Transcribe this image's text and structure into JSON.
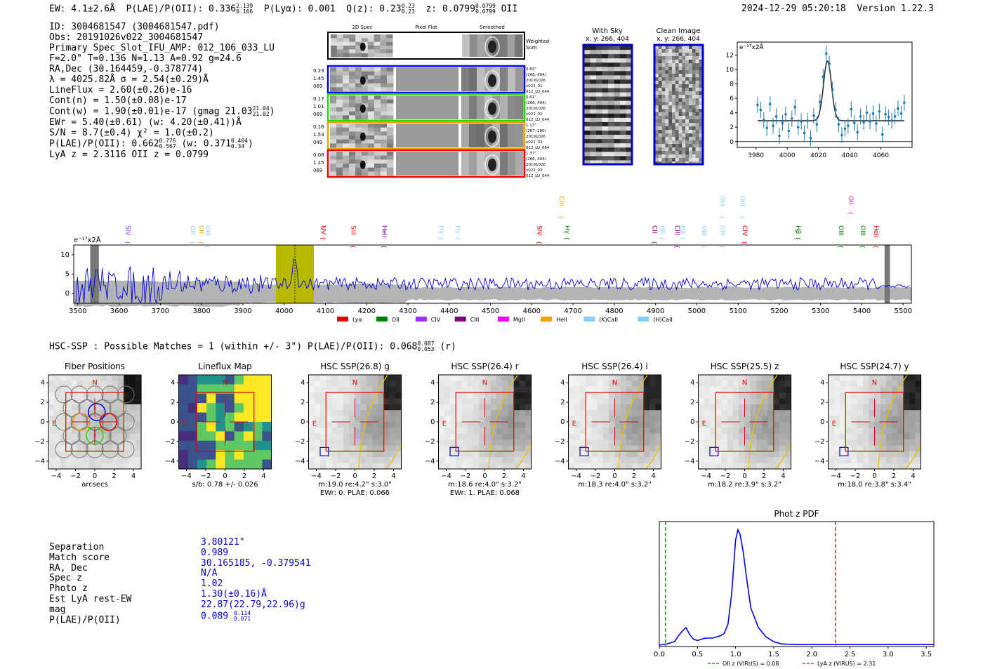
{
  "header": {
    "ew": "EW: 4.1±2.6Å",
    "plae": "P(LAE)/P(OII): 0.336",
    "plae_hi": "2.139",
    "plae_lo": "0.166",
    "plya": "P(Lyα): 0.001",
    "q": "Q(z): 0.23",
    "q_hi": "0.23",
    "q_lo": "0.23",
    "z": "z: 0.0799",
    "z_hi": "0.0799",
    "z_lo": "0.0799",
    "z_line": "OII",
    "timestamp": "2024-12-29 05:20:18",
    "version": "Version 1.22.3"
  },
  "info": {
    "lines": [
      "ID: 3004681547 (3004681547.pdf)",
      "Obs: 20191026v022_3004681547",
      "Primary Spec_Slot_IFU_AMP: 012_106_033_LU",
      "F=2.0\"  T=0.136  N=1.13  A=0.92  g=24.6",
      "RA,Dec (30.164459,-0.378774)",
      "λ = 4025.82Å  σ = 2.54(±0.29)Å",
      "LineFlux = 2.60(±0.26)e-16",
      "Cont(n) = 1.50(±0.08)e-17",
      "Cont(w) = 1.90(±0.01)e-17 (gmag 21.03",
      "EWr = 5.40(±0.61) (w: 4.20(±0.41))Å",
      "S/N = 8.7(±0.4)  χ² = 1.0(±0.2)",
      "P(LAE)/P(OII): 0.662",
      "LyA z = 2.3116  OII z = 0.0799"
    ],
    "gmag_hi": "21.04",
    "gmag_lo": "21.02",
    "plae_hi": "0.776",
    "plae_lo": "0.567",
    "plae_w": "(w: 0.371",
    "plae_w_hi": "0.404",
    "plae_w_lo": "0.34",
    "plae_w_close": ")"
  },
  "cutouts": {
    "col_titles": [
      "2D Spec",
      "Pixel Flat",
      "Smoothed"
    ],
    "weighted_label": "Weighted Sum",
    "rows": [
      {
        "left": [
          "0.23",
          "1.45",
          "069"
        ],
        "right": [
          "0.83\"",
          "(266, 404)",
          "20191026",
          "v022_01",
          "012_LU_044"
        ],
        "color": "#0000ff"
      },
      {
        "left": [
          "0.17",
          "1.01",
          "069"
        ],
        "right": [
          "0.61\"",
          "(266, 404)",
          "20191026",
          "v022_02",
          "012_LU_044"
        ],
        "color": "#22dd00"
      },
      {
        "left": [
          "0.16",
          "1.53",
          "049"
        ],
        "right": [
          "1.17\"",
          "(267, 180)",
          "20191026",
          "v022_03",
          "012_LU_064"
        ],
        "color": "#f5a000"
      },
      {
        "left": [
          "0.08",
          "1.25",
          "069"
        ],
        "right": [
          "1.37\"",
          "(266, 404)",
          "20191026",
          "v022_03",
          "012_LU_044"
        ],
        "color": "#ee0000"
      }
    ],
    "sky_title": "With Sky",
    "sky_coords": "x, y: 266, 404",
    "clean_title": "Clean Image",
    "clean_coords": "x, y: 266, 404"
  },
  "zoom_chart": {
    "type": "line",
    "ylabel": "e⁻¹⁷x2Å",
    "x_ticks": [
      "3980",
      "4000",
      "4020",
      "4040",
      "4060"
    ],
    "y_ticks": [
      "0",
      "2",
      "4",
      "6",
      "8",
      "10",
      "12"
    ],
    "xlim": [
      3968,
      4080
    ],
    "ylim": [
      -0.8,
      13.8
    ],
    "data_x": [
      3981,
      3983,
      3985,
      3987,
      3989,
      3991,
      3993,
      3995,
      3997,
      3999,
      4001,
      4003,
      4005,
      4007,
      4009,
      4011,
      4013,
      4015,
      4017,
      4019,
      4021,
      4023,
      4025,
      4027,
      4029,
      4031,
      4033,
      4035,
      4037,
      4039,
      4041,
      4043,
      4045,
      4047,
      4049,
      4051,
      4053,
      4055,
      4057,
      4059,
      4061,
      4063,
      4065,
      4067,
      4069,
      4071,
      4073,
      4075
    ],
    "data_y": [
      5.1,
      4.4,
      3.0,
      1.9,
      5.2,
      2.2,
      3.5,
      0.8,
      2.6,
      3.8,
      1.5,
      3.2,
      4.8,
      2.0,
      2.8,
      1.2,
      2.9,
      0.5,
      3.6,
      2.4,
      5.5,
      9.0,
      12.2,
      10.8,
      7.2,
      4.4,
      2.4,
      0.9,
      1.8,
      2.2,
      4.5,
      2.6,
      1.3,
      3.5,
      2.7,
      4.0,
      2.8,
      3.9,
      2.5,
      4.2,
      1.0,
      3.8,
      3.4,
      2.9,
      3.5,
      4.6,
      3.9,
      5.4
    ],
    "fit": {
      "continuum": 2.9,
      "amplitude": 8.3,
      "center": 4025.8,
      "sigma": 2.54
    }
  },
  "spectrum": {
    "ylabel": "e⁻¹⁷x2Å",
    "x_ticks": [
      "3500",
      "3600",
      "3700",
      "3800",
      "3900",
      "4000",
      "4100",
      "4200",
      "4300",
      "4400",
      "4500",
      "4600",
      "4700",
      "4800",
      "4900",
      "5000",
      "5100",
      "5200",
      "5300",
      "5400",
      "5500"
    ],
    "y_ticks": [
      "0",
      "5",
      "10"
    ],
    "xlim": [
      3490,
      5520
    ],
    "ylim": [
      -2.5,
      12.5
    ],
    "highlight_range": [
      3980,
      4072
    ],
    "line_marker": 4026,
    "masked_regions": [
      [
        3530,
        3551
      ],
      [
        5455,
        5468
      ]
    ],
    "lines": [
      {
        "label": "SIV",
        "x": 3622,
        "color": "#9b30ff",
        "row": "low"
      },
      {
        "label": "OII",
        "x": 3778,
        "color": "#87cefa",
        "row": "low"
      },
      {
        "label": "CII",
        "x": 3800,
        "color": "#f5a000",
        "row": "low"
      },
      {
        "label": "OIII",
        "x": 3815,
        "color": "#87cefa",
        "row": "low"
      },
      {
        "label": "NV",
        "x": 4095,
        "color": "#ee0000",
        "row": "low"
      },
      {
        "label": "SiII",
        "x": 4168,
        "color": "#ee0000",
        "row": "low"
      },
      {
        "label": "HeII",
        "x": 4243,
        "color": "#800080",
        "row": "low"
      },
      {
        "label": "Hγ",
        "x": 4382,
        "color": "#87cefa",
        "row": "low"
      },
      {
        "label": "Hγ",
        "x": 4422,
        "color": "#87cefa",
        "row": "low"
      },
      {
        "label": "SIV",
        "x": 4619,
        "color": "#ee0000",
        "row": "low"
      },
      {
        "label": "CIII",
        "x": 4673,
        "color": "#f5a000",
        "row": "high"
      },
      {
        "label": "Hγ",
        "x": 4686,
        "color": "#008000",
        "row": "low"
      },
      {
        "label": "CII",
        "x": 4898,
        "color": "#800080",
        "row": "low"
      },
      {
        "label": "Hδ",
        "x": 4917,
        "color": "#87cefa",
        "row": "low"
      },
      {
        "label": "CIII",
        "x": 4953,
        "color": "#800080",
        "row": "low"
      },
      {
        "label": "Hβ",
        "x": 4966,
        "color": "#87cefa",
        "row": "low"
      },
      {
        "label": "OIII",
        "x": 5018,
        "color": "#87cefa",
        "row": "low"
      },
      {
        "label": "OIII",
        "x": 5063,
        "color": "#87cefa",
        "row": "low"
      },
      {
        "label": "OIII",
        "x": 5062,
        "color": "#87cefa",
        "row": "high"
      },
      {
        "label": "OIII",
        "x": 5111,
        "color": "#87cefa",
        "row": "high"
      },
      {
        "label": "CIV",
        "x": 5117,
        "color": "#ee0000",
        "row": "low"
      },
      {
        "label": "Hβ",
        "x": 5246,
        "color": "#008000",
        "row": "low"
      },
      {
        "label": "OII",
        "x": 5374,
        "color": "#ff00ff",
        "row": "high"
      },
      {
        "label": "OIII",
        "x": 5350,
        "color": "#008000",
        "row": "low"
      },
      {
        "label": "OIII",
        "x": 5403,
        "color": "#008000",
        "row": "low"
      },
      {
        "label": "HeII",
        "x": 5435,
        "color": "#ee0000",
        "row": "low"
      }
    ],
    "legend": [
      {
        "label": "Lyα",
        "color": "#ee0000"
      },
      {
        "label": "OII",
        "color": "#008000"
      },
      {
        "label": "CIV",
        "color": "#9b30ff"
      },
      {
        "label": "CIII",
        "color": "#800080"
      },
      {
        "label": "MgII",
        "color": "#ff00ff"
      },
      {
        "label": "HeII",
        "color": "#f5a000"
      },
      {
        "label": "(K)CaII",
        "color": "#87cefa"
      },
      {
        "label": "(H)CaII",
        "color": "#87cefa"
      }
    ]
  },
  "hsc": {
    "title": "HSC-SSP : Possible Matches = 1 (within +/- 3\")  P(LAE)/P(OII): 0.068",
    "plae_hi": "0.087",
    "plae_lo": "0.053",
    "band": "(r)",
    "panels": [
      {
        "title": "Fiber Positions",
        "xlabel": "arcsecs",
        "sub": "",
        "kind": "fiber"
      },
      {
        "title": "Lineflux Map",
        "xlabel": "s/b: 0.78 +/- 0.026",
        "sub": "",
        "kind": "lineflux"
      },
      {
        "title": "HSC SSP(26.8) g",
        "xlabel": "m:19.0  re:4.2\"  s:3.0\"",
        "sub": "EWr: 0. PLAE: 0.066",
        "kind": "hsc",
        "stamp": 0.7
      },
      {
        "title": "HSC SSP(26.4) r",
        "xlabel": "m:18.6  re:4.0\"  s:3.2\"",
        "sub": "EWr: 1. PLAE: 0.068",
        "kind": "hsc",
        "stamp": 0.8
      },
      {
        "title": "HSC SSP(26.4) i",
        "xlabel": "m:18.3  re:4.0\"  s:3.2\"",
        "sub": "",
        "kind": "hsc",
        "stamp": 0.85
      },
      {
        "title": "HSC SSP(25.5) z",
        "xlabel": "m:18.2  re:3.9\"  s:3.2\"",
        "sub": "",
        "kind": "hsc",
        "stamp": 0.9
      },
      {
        "title": "HSC SSP(24.7) y",
        "xlabel": "m:18.0  re:3.8\"  s:3.4\"",
        "sub": "",
        "kind": "hsc",
        "stamp": 1.0
      }
    ],
    "ticks": [
      "−4",
      "−2",
      "0",
      "2",
      "4"
    ],
    "north": "N",
    "east": "E"
  },
  "match_table": {
    "labels": [
      "Separation",
      "Match score",
      "RA, Dec",
      "Spec z",
      "Photo z",
      "Est LyA rest-EW",
      "mag",
      "P(LAE)/P(OII)"
    ],
    "values": [
      "3.80121\"",
      "0.989",
      "30.165185, -0.379541",
      "N/A",
      "1.02",
      "1.30(±0.16)Å",
      "22.87(22.79,22.96)g",
      "0.089"
    ],
    "plae_hi": "0.114",
    "plae_lo": "0.071"
  },
  "chart_data": {
    "type": "line",
    "title": "Phot z PDF",
    "xlabel": "",
    "ylabel": "",
    "x_ticks": [
      "0.0",
      "0.5",
      "1.0",
      "1.5",
      "2.0",
      "2.5",
      "3.0",
      "3.5"
    ],
    "xlim": [
      0.0,
      3.6
    ],
    "ylim": [
      0.0,
      1.0
    ],
    "x": [
      0.0,
      0.1,
      0.2,
      0.25,
      0.3,
      0.35,
      0.4,
      0.45,
      0.5,
      0.6,
      0.7,
      0.8,
      0.85,
      0.9,
      0.95,
      1.0,
      1.03,
      1.06,
      1.1,
      1.15,
      1.2,
      1.3,
      1.4,
      1.5,
      1.6,
      1.8,
      2.0,
      2.5,
      3.0,
      3.6
    ],
    "y": [
      0.0,
      0.01,
      0.03,
      0.08,
      0.12,
      0.15,
      0.09,
      0.05,
      0.04,
      0.06,
      0.06,
      0.08,
      0.1,
      0.18,
      0.45,
      0.9,
      0.99,
      0.95,
      0.8,
      0.55,
      0.32,
      0.15,
      0.07,
      0.03,
      0.01,
      0.005,
      0.005,
      0.005,
      0.005,
      0.005
    ],
    "vlines": [
      {
        "x": 0.08,
        "label": "OII z (VIRUS) = 0.08",
        "color": "#008000"
      },
      {
        "x": 2.31,
        "label": "LyA z (VIRUS) = 2.31",
        "color": "#ee0000"
      }
    ]
  }
}
